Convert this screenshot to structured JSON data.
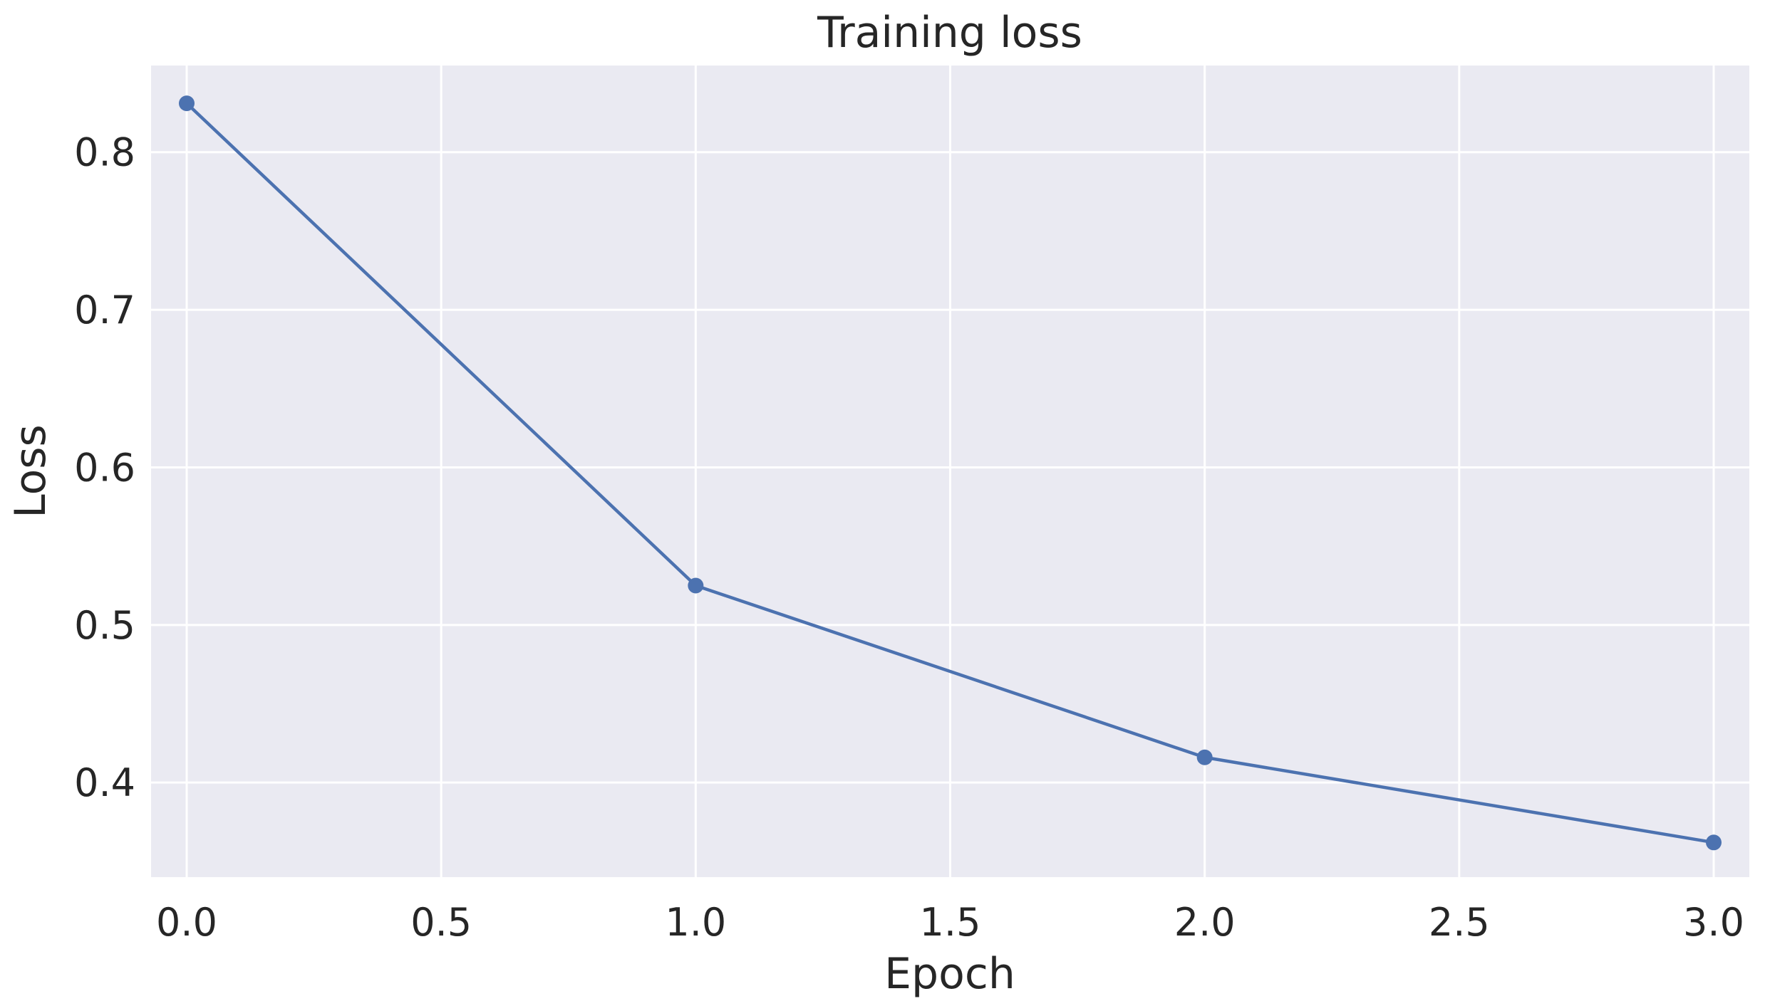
{
  "chart_data": {
    "type": "line",
    "title": "Training loss",
    "xlabel": "Epoch",
    "ylabel": "Loss",
    "xlim": [
      -0.07,
      3.07
    ],
    "ylim": [
      0.34,
      0.855
    ],
    "xticks": [
      0.0,
      0.5,
      1.0,
      1.5,
      2.0,
      2.5,
      3.0
    ],
    "xtick_labels": [
      "0.0",
      "0.5",
      "1.0",
      "1.5",
      "2.0",
      "2.5",
      "3.0"
    ],
    "yticks": [
      0.4,
      0.5,
      0.6,
      0.7,
      0.8
    ],
    "ytick_labels": [
      "0.4",
      "0.5",
      "0.6",
      "0.7",
      "0.8"
    ],
    "grid": true,
    "series": [
      {
        "color": "#4c72b0",
        "marker": "circle",
        "x": [
          0,
          1,
          2,
          3
        ],
        "y": [
          0.831,
          0.525,
          0.416,
          0.362
        ]
      }
    ]
  }
}
